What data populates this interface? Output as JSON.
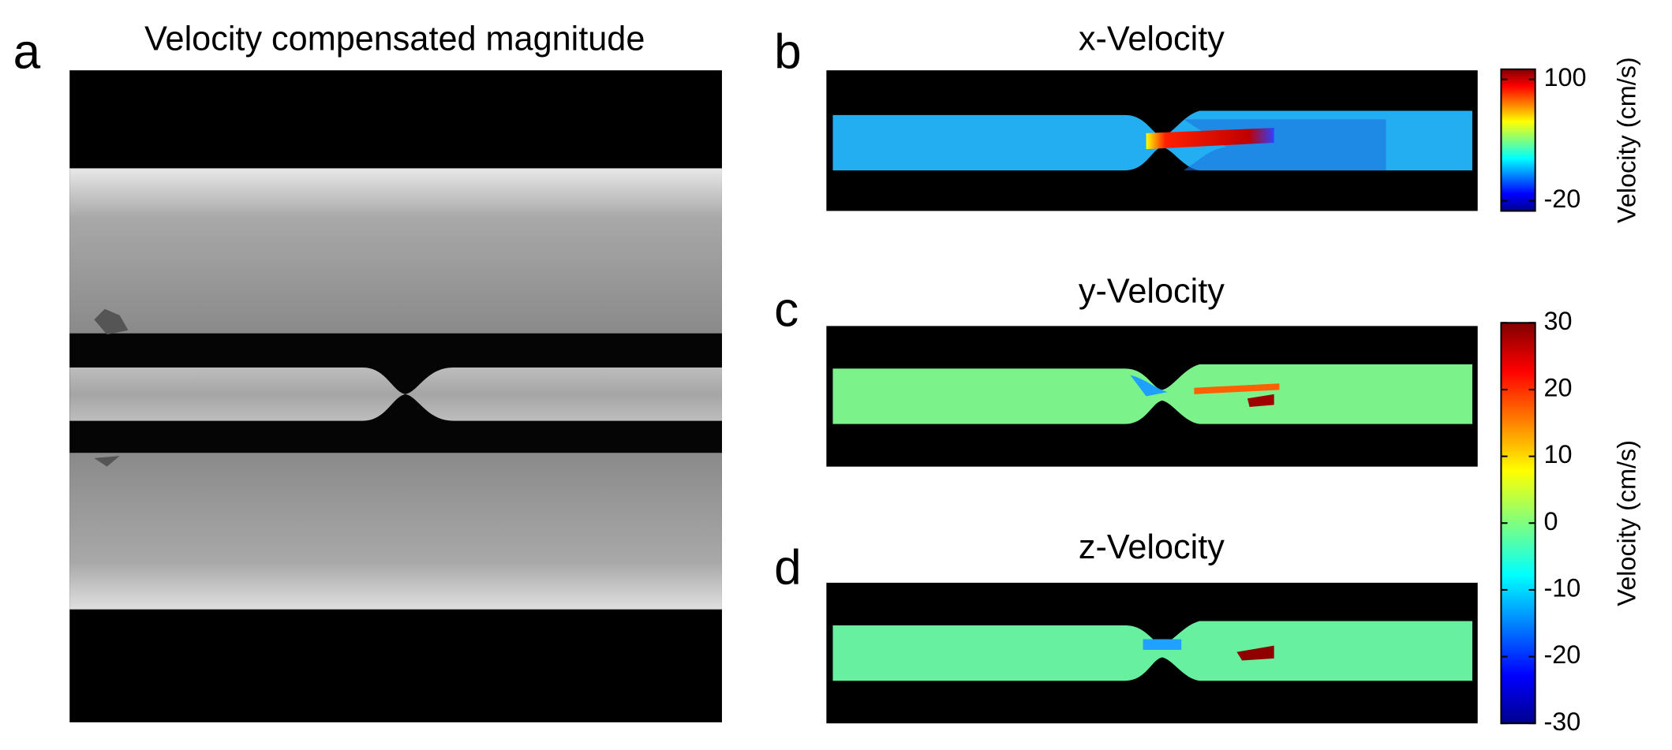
{
  "panels": [
    {
      "label": "a",
      "title": "Velocity compensated magnitude"
    },
    {
      "label": "b",
      "title": "x-Velocity"
    },
    {
      "label": "c",
      "title": "y-Velocity"
    },
    {
      "label": "d",
      "title": "z-Velocity"
    }
  ],
  "colorbars": [
    {
      "label": "Velocity (cm/s)",
      "lim": [
        -30,
        110
      ],
      "ticks": [
        -20,
        100
      ]
    },
    {
      "label": "Velocity (cm/s)",
      "lim": [
        -30,
        30
      ],
      "ticks": [
        -30,
        -20,
        -10,
        0,
        10,
        20,
        30
      ]
    }
  ]
}
